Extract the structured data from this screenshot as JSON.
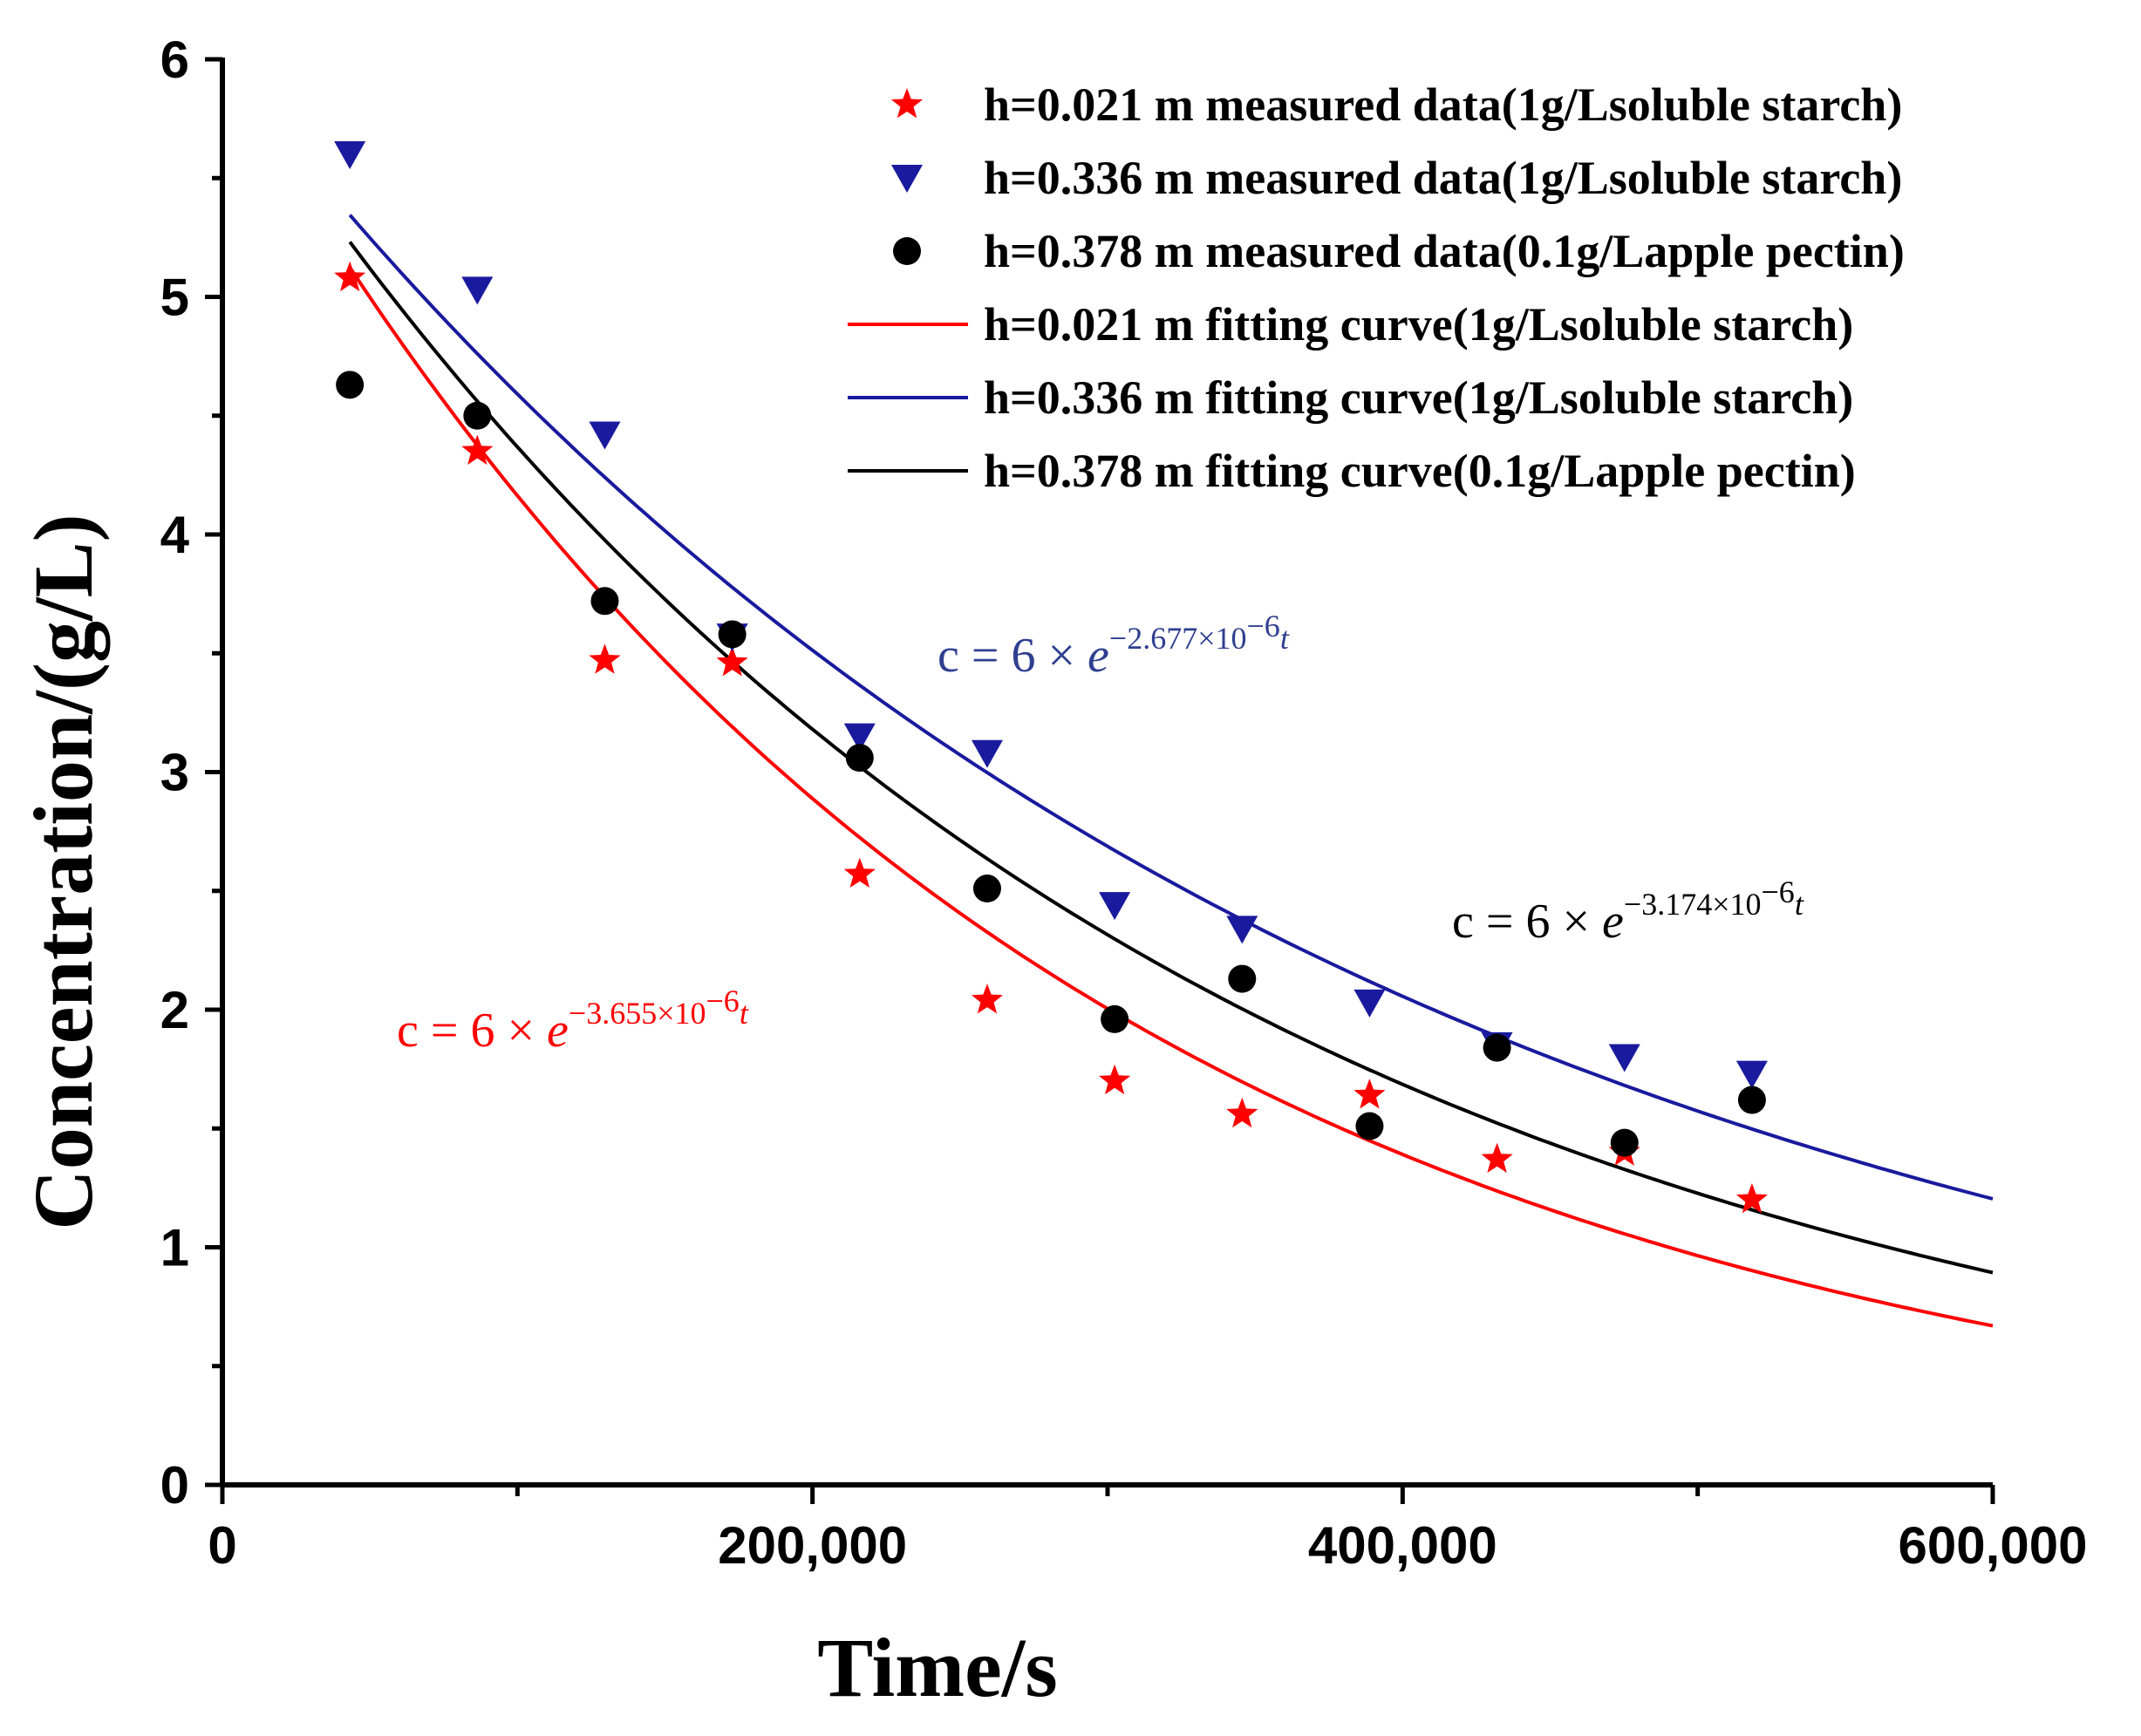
{
  "chart_data": {
    "type": "scatter",
    "title": "",
    "xlabel": "Time/s",
    "ylabel": "Concentration/(g/L)",
    "xlim": [
      0,
      600000
    ],
    "ylim": [
      0,
      6
    ],
    "x_ticks": [
      "0",
      "200,000",
      "400,000",
      "600,000"
    ],
    "y_ticks": [
      "0",
      "1",
      "2",
      "3",
      "4",
      "5",
      "6"
    ],
    "grid": false,
    "legend_position": "top-right",
    "colors": {
      "red": "#ff0000",
      "blue": "#1a1a9e",
      "black": "#000000",
      "eq_blue": "#2f3f8f"
    },
    "series": [
      {
        "name": "h=0.021 m measured data(1g/Lsoluble starch)",
        "kind": "points",
        "marker": "star",
        "color": "#ff0000",
        "x": [
          43200,
          86400,
          129600,
          172800,
          216000,
          259200,
          302400,
          345600,
          388800,
          432000,
          475200,
          518400
        ],
        "y": [
          5.08,
          4.35,
          3.47,
          3.46,
          2.57,
          2.04,
          1.7,
          1.56,
          1.64,
          1.37,
          1.4,
          1.2
        ]
      },
      {
        "name": "h=0.336 m measured data(1g/Lsoluble starch)",
        "kind": "points",
        "marker": "triangle-down",
        "color": "#1a1a9e",
        "x": [
          43200,
          86400,
          129600,
          172800,
          216000,
          259200,
          302400,
          345600,
          388800,
          432000,
          475200,
          518400
        ],
        "y": [
          5.6,
          5.03,
          4.42,
          3.57,
          3.15,
          3.08,
          2.44,
          2.34,
          2.03,
          1.85,
          1.8,
          1.73
        ]
      },
      {
        "name": "h=0.378 m measured data(0.1g/Lapple pectin)",
        "kind": "points",
        "marker": "circle",
        "color": "#000000",
        "x": [
          43200,
          86400,
          129600,
          172800,
          216000,
          259200,
          302400,
          345600,
          388800,
          432000,
          475200,
          518400
        ],
        "y": [
          4.63,
          4.5,
          3.72,
          3.58,
          3.06,
          2.51,
          1.96,
          2.13,
          1.51,
          1.84,
          1.44,
          1.62
        ]
      },
      {
        "name": "h=0.021 m fitting curve(1g/Lsoluble starch)",
        "kind": "curve",
        "color": "#ff0000",
        "a": 6,
        "k": 3.655e-06,
        "x_range": [
          43200,
          600000
        ]
      },
      {
        "name": "h=0.336 m fitting curve(1g/Lsoluble starch)",
        "kind": "curve",
        "color": "#1a1a9e",
        "a": 6,
        "k": 2.677e-06,
        "x_range": [
          43200,
          600000
        ]
      },
      {
        "name": "h=0.378 m fitting curve(0.1g/Lapple pectin)",
        "kind": "curve",
        "color": "#000000",
        "a": 6,
        "k": 3.174e-06,
        "x_range": [
          43200,
          600000
        ]
      }
    ],
    "annotations": [
      {
        "id": "eq-blue",
        "main": "c = 6 × e",
        "exp": "−2.677×10",
        "exp2": "−6",
        "var": "t",
        "color": "#2f3f8f"
      },
      {
        "id": "eq-black",
        "main": "c = 6 × e",
        "exp": "−3.174×10",
        "exp2": "−6",
        "var": "t",
        "color": "#000000"
      },
      {
        "id": "eq-red",
        "main": "c = 6 × e",
        "exp": "−3.655×10",
        "exp2": "−6",
        "var": "t",
        "color": "#ff0000"
      }
    ]
  }
}
